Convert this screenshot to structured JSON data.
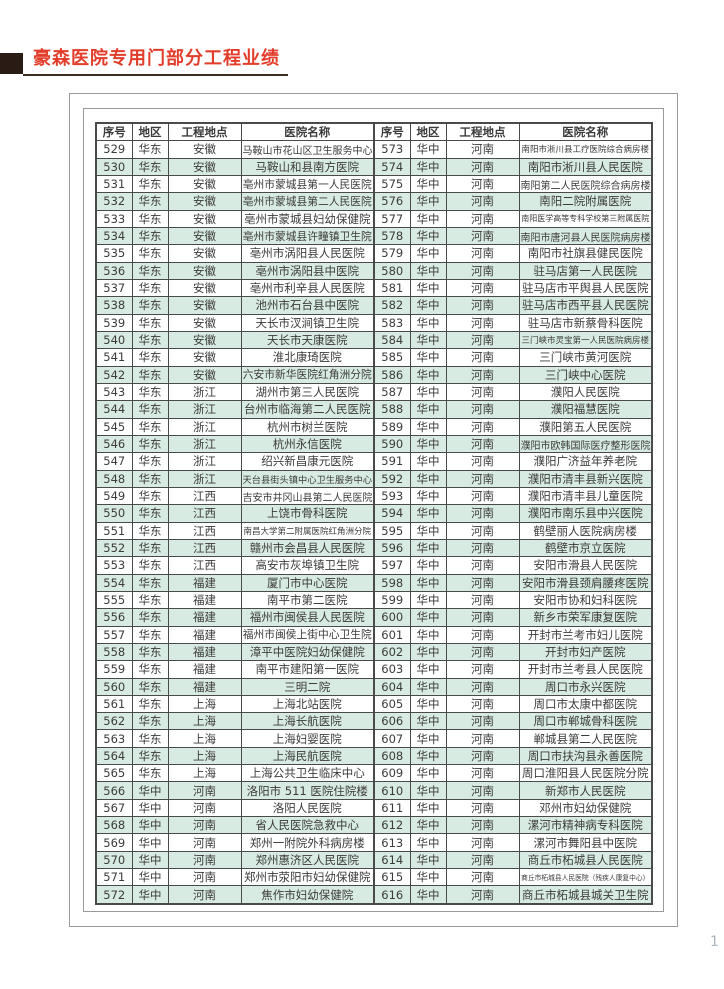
{
  "page": {
    "title": "豪森医院专用门部分工程业绩",
    "page_number": "1"
  },
  "colors": {
    "title_red": "#e23d2a",
    "title_bar_dark": "#2a1b15",
    "title_underline": "#3d2c24",
    "stripe_green": "#d8ebe2",
    "grid_line": "#4a4a4a",
    "text": "#3b3b3b",
    "frame_gray": "#9a9a9a",
    "page_number_gray": "#a9b3bd"
  },
  "table": {
    "headers": [
      "序号",
      "地区",
      "工程地点",
      "医院名称"
    ],
    "left_rows": [
      [
        "529",
        "华东",
        "安徽",
        "马鞍山市花山区卫生服务中心"
      ],
      [
        "530",
        "华东",
        "安徽",
        "马鞍山和县南方医院"
      ],
      [
        "531",
        "华东",
        "安徽",
        "亳州市蒙城县第一人民医院"
      ],
      [
        "532",
        "华东",
        "安徽",
        "亳州市蒙城县第二人民医院"
      ],
      [
        "533",
        "华东",
        "安徽",
        "亳州市蒙城县妇幼保健院"
      ],
      [
        "534",
        "华东",
        "安徽",
        "亳州市蒙城县许疃镇卫生院"
      ],
      [
        "535",
        "华东",
        "安徽",
        "亳州市涡阳县人民医院"
      ],
      [
        "536",
        "华东",
        "安徽",
        "亳州市涡阳县中医院"
      ],
      [
        "537",
        "华东",
        "安徽",
        "亳州市利辛县人民医院"
      ],
      [
        "538",
        "华东",
        "安徽",
        "池州市石台县中医院"
      ],
      [
        "539",
        "华东",
        "安徽",
        "天长市汊涧镇卫生院"
      ],
      [
        "540",
        "华东",
        "安徽",
        "天长市天康医院"
      ],
      [
        "541",
        "华东",
        "安徽",
        "淮北康琦医院"
      ],
      [
        "542",
        "华东",
        "安徽",
        "六安市新华医院红角洲分院"
      ],
      [
        "543",
        "华东",
        "浙江",
        "湖州市第三人民医院"
      ],
      [
        "544",
        "华东",
        "浙江",
        "台州市临海第二人民医院"
      ],
      [
        "545",
        "华东",
        "浙江",
        "杭州市树兰医院"
      ],
      [
        "546",
        "华东",
        "浙江",
        "杭州永信医院"
      ],
      [
        "547",
        "华东",
        "浙江",
        "绍兴新昌康元医院"
      ],
      [
        "548",
        "华东",
        "浙江",
        "天台县街头镇中心卫生服务中心"
      ],
      [
        "549",
        "华东",
        "江西",
        "吉安市井冈山县第二人民医院"
      ],
      [
        "550",
        "华东",
        "江西",
        "上饶市骨科医院"
      ],
      [
        "551",
        "华东",
        "江西",
        "南昌大学第二附属医院红角洲分院"
      ],
      [
        "552",
        "华东",
        "江西",
        "赣州市会昌县人民医院"
      ],
      [
        "553",
        "华东",
        "江西",
        "高安市灰埠镇卫生院"
      ],
      [
        "554",
        "华东",
        "福建",
        "厦门市中心医院"
      ],
      [
        "555",
        "华东",
        "福建",
        "南平市第二医院"
      ],
      [
        "556",
        "华东",
        "福建",
        "福州市闽侯县人民医院"
      ],
      [
        "557",
        "华东",
        "福建",
        "福州市闽侯上街中心卫生院"
      ],
      [
        "558",
        "华东",
        "福建",
        "漳平中医院妇幼保健院"
      ],
      [
        "559",
        "华东",
        "福建",
        "南平市建阳第一医院"
      ],
      [
        "560",
        "华东",
        "福建",
        "三明二院"
      ],
      [
        "561",
        "华东",
        "上海",
        "上海北站医院"
      ],
      [
        "562",
        "华东",
        "上海",
        "上海长航医院"
      ],
      [
        "563",
        "华东",
        "上海",
        "上海妇婴医院"
      ],
      [
        "564",
        "华东",
        "上海",
        "上海民航医院"
      ],
      [
        "565",
        "华东",
        "上海",
        "上海公共卫生临床中心"
      ],
      [
        "566",
        "华中",
        "河南",
        "洛阳市 511 医院住院楼"
      ],
      [
        "567",
        "华中",
        "河南",
        "洛阳人民医院"
      ],
      [
        "568",
        "华中",
        "河南",
        "省人民医院急救中心"
      ],
      [
        "569",
        "华中",
        "河南",
        "郑州一附院外科病房楼"
      ],
      [
        "570",
        "华中",
        "河南",
        "郑州惠济区人民医院"
      ],
      [
        "571",
        "华中",
        "河南",
        "郑州市荥阳市妇幼保健院"
      ],
      [
        "572",
        "华中",
        "河南",
        "焦作市妇幼保健院"
      ]
    ],
    "right_rows": [
      [
        "573",
        "华中",
        "河南",
        "南阳市淅川县工疗医院综合病房楼"
      ],
      [
        "574",
        "华中",
        "河南",
        "南阳市淅川县人民医院"
      ],
      [
        "575",
        "华中",
        "河南",
        "南阳第二人民医院综合病房楼"
      ],
      [
        "576",
        "华中",
        "河南",
        "南阳二院附属医院"
      ],
      [
        "577",
        "华中",
        "河南",
        "南阳医学高等专科学校第三附属医院"
      ],
      [
        "578",
        "华中",
        "河南",
        "南阳市唐河县人民医院病房楼"
      ],
      [
        "579",
        "华中",
        "河南",
        "南阳市社旗县健民医院"
      ],
      [
        "580",
        "华中",
        "河南",
        "驻马店第一人民医院"
      ],
      [
        "581",
        "华中",
        "河南",
        "驻马店市平舆县人民医院"
      ],
      [
        "582",
        "华中",
        "河南",
        "驻马店市西平县人民医院"
      ],
      [
        "583",
        "华中",
        "河南",
        "驻马店市新蔡骨科医院"
      ],
      [
        "584",
        "华中",
        "河南",
        "三门峡市灵宝第一人民医院病房楼"
      ],
      [
        "585",
        "华中",
        "河南",
        "三门峡市黄河医院"
      ],
      [
        "586",
        "华中",
        "河南",
        "三门峡中心医院"
      ],
      [
        "587",
        "华中",
        "河南",
        "濮阳人民医院"
      ],
      [
        "588",
        "华中",
        "河南",
        "濮阳福慧医院"
      ],
      [
        "589",
        "华中",
        "河南",
        "濮阳第五人民医院"
      ],
      [
        "590",
        "华中",
        "河南",
        "濮阳市欧韩国际医疗整形医院"
      ],
      [
        "591",
        "华中",
        "河南",
        "濮阳广济益年养老院"
      ],
      [
        "592",
        "华中",
        "河南",
        "濮阳市清丰县新兴医院"
      ],
      [
        "593",
        "华中",
        "河南",
        "濮阳市清丰县儿童医院"
      ],
      [
        "594",
        "华中",
        "河南",
        "濮阳市南乐县中兴医院"
      ],
      [
        "595",
        "华中",
        "河南",
        "鹤壁丽人医院病房楼"
      ],
      [
        "596",
        "华中",
        "河南",
        "鹤壁市京立医院"
      ],
      [
        "597",
        "华中",
        "河南",
        "安阳市滑县人民医院"
      ],
      [
        "598",
        "华中",
        "河南",
        "安阳市滑县颈肩腰疼医院"
      ],
      [
        "599",
        "华中",
        "河南",
        "安阳市协和妇科医院"
      ],
      [
        "600",
        "华中",
        "河南",
        "新乡市荣军康复医院"
      ],
      [
        "601",
        "华中",
        "河南",
        "开封市兰考市妇儿医院"
      ],
      [
        "602",
        "华中",
        "河南",
        "开封市妇产医院"
      ],
      [
        "603",
        "华中",
        "河南",
        "开封市兰考县人民医院"
      ],
      [
        "604",
        "华中",
        "河南",
        "周口市永兴医院"
      ],
      [
        "605",
        "华中",
        "河南",
        "周口市太康中都医院"
      ],
      [
        "606",
        "华中",
        "河南",
        "周口市郸城骨科医院"
      ],
      [
        "607",
        "华中",
        "河南",
        "郸城县第二人民医院"
      ],
      [
        "608",
        "华中",
        "河南",
        "周口市扶沟县永善医院"
      ],
      [
        "609",
        "华中",
        "河南",
        "周口淮阳县人民医院分院"
      ],
      [
        "610",
        "华中",
        "河南",
        "新郑市人民医院"
      ],
      [
        "611",
        "华中",
        "河南",
        "邓州市妇幼保健院"
      ],
      [
        "612",
        "华中",
        "河南",
        "漯河市精神病专科医院"
      ],
      [
        "613",
        "华中",
        "河南",
        "漯河市舞阳县中医院"
      ],
      [
        "614",
        "华中",
        "河南",
        "商丘市柘城县人民医院"
      ],
      [
        "615",
        "华中",
        "河南",
        "商丘市柘城县人民医院（残疾人康复中心）"
      ],
      [
        "616",
        "华中",
        "河南",
        "商丘市柘城县城关卫生院"
      ]
    ]
  }
}
